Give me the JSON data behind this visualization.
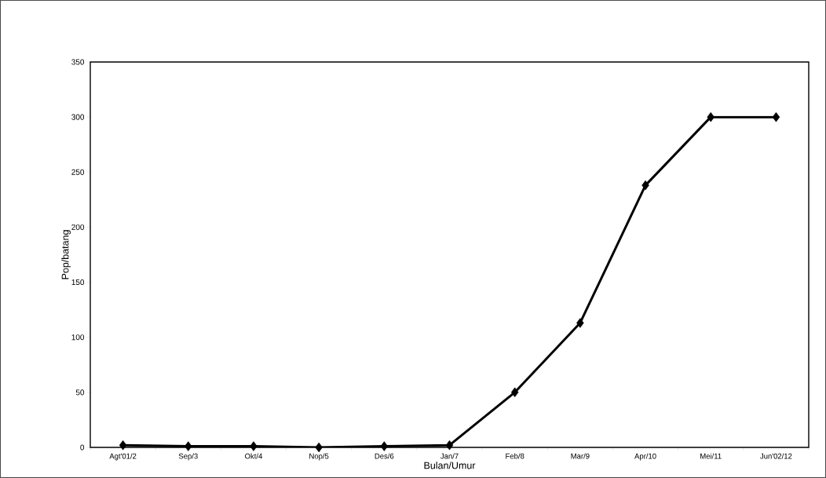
{
  "chart_data": {
    "type": "line",
    "xlabel": "Bulan/Umur",
    "ylabel": "Pop/batang",
    "categories": [
      "Agt'01/2",
      "Sep/3",
      "Okt/4",
      "Nop/5",
      "Des/6",
      "Jan/7",
      "Feb/8",
      "Mar/9",
      "Apr/10",
      "Mei/11",
      "Jun'02/12"
    ],
    "series": [
      {
        "color": "#000000",
        "values": [
          2,
          1,
          1,
          0,
          1,
          2,
          50,
          113,
          238,
          300,
          300
        ]
      }
    ],
    "ylim": [
      0,
      350
    ],
    "yticks": [
      0,
      50,
      100,
      150,
      200,
      250,
      300,
      350
    ],
    "marker": "diamond",
    "line_style": "solid",
    "grid": false
  }
}
